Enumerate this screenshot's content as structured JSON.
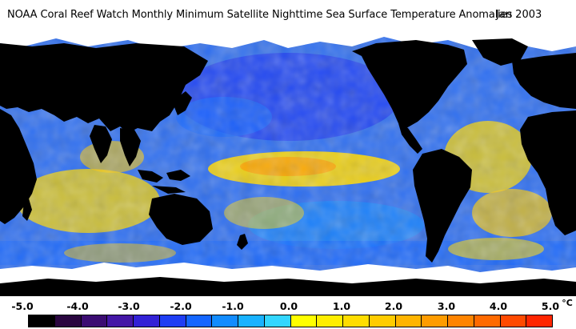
{
  "title": "NOAA Coral Reef Watch Monthly Minimum Satellite Nighttime Sea Surface Temperature Anomalies",
  "date": "Jan 2003",
  "legend": {
    "ticks": [
      "-5.0",
      "-4.0",
      "-3.0",
      "-2.0",
      "-1.0",
      "0.0",
      "1.0",
      "2.0",
      "3.0",
      "4.0",
      "5.0"
    ],
    "unit": "°C",
    "colors": [
      "#000000",
      "#2a0640",
      "#3b0c72",
      "#4417a6",
      "#3322d6",
      "#1f3ef3",
      "#1466ff",
      "#128cff",
      "#19b2ff",
      "#33d6ff",
      "#ffff00",
      "#ffee00",
      "#ffdd00",
      "#ffcc00",
      "#ffb400",
      "#ff9c00",
      "#ff8400",
      "#ff6a00",
      "#ff4a00",
      "#ff2600"
    ]
  },
  "map_colors": {
    "land": "#000000",
    "ice": "#ffffff",
    "ocean_base": "#2f6ff0",
    "cold": "#1f3ef3",
    "warm": "#ffd800",
    "hot": "#ff9a00"
  }
}
